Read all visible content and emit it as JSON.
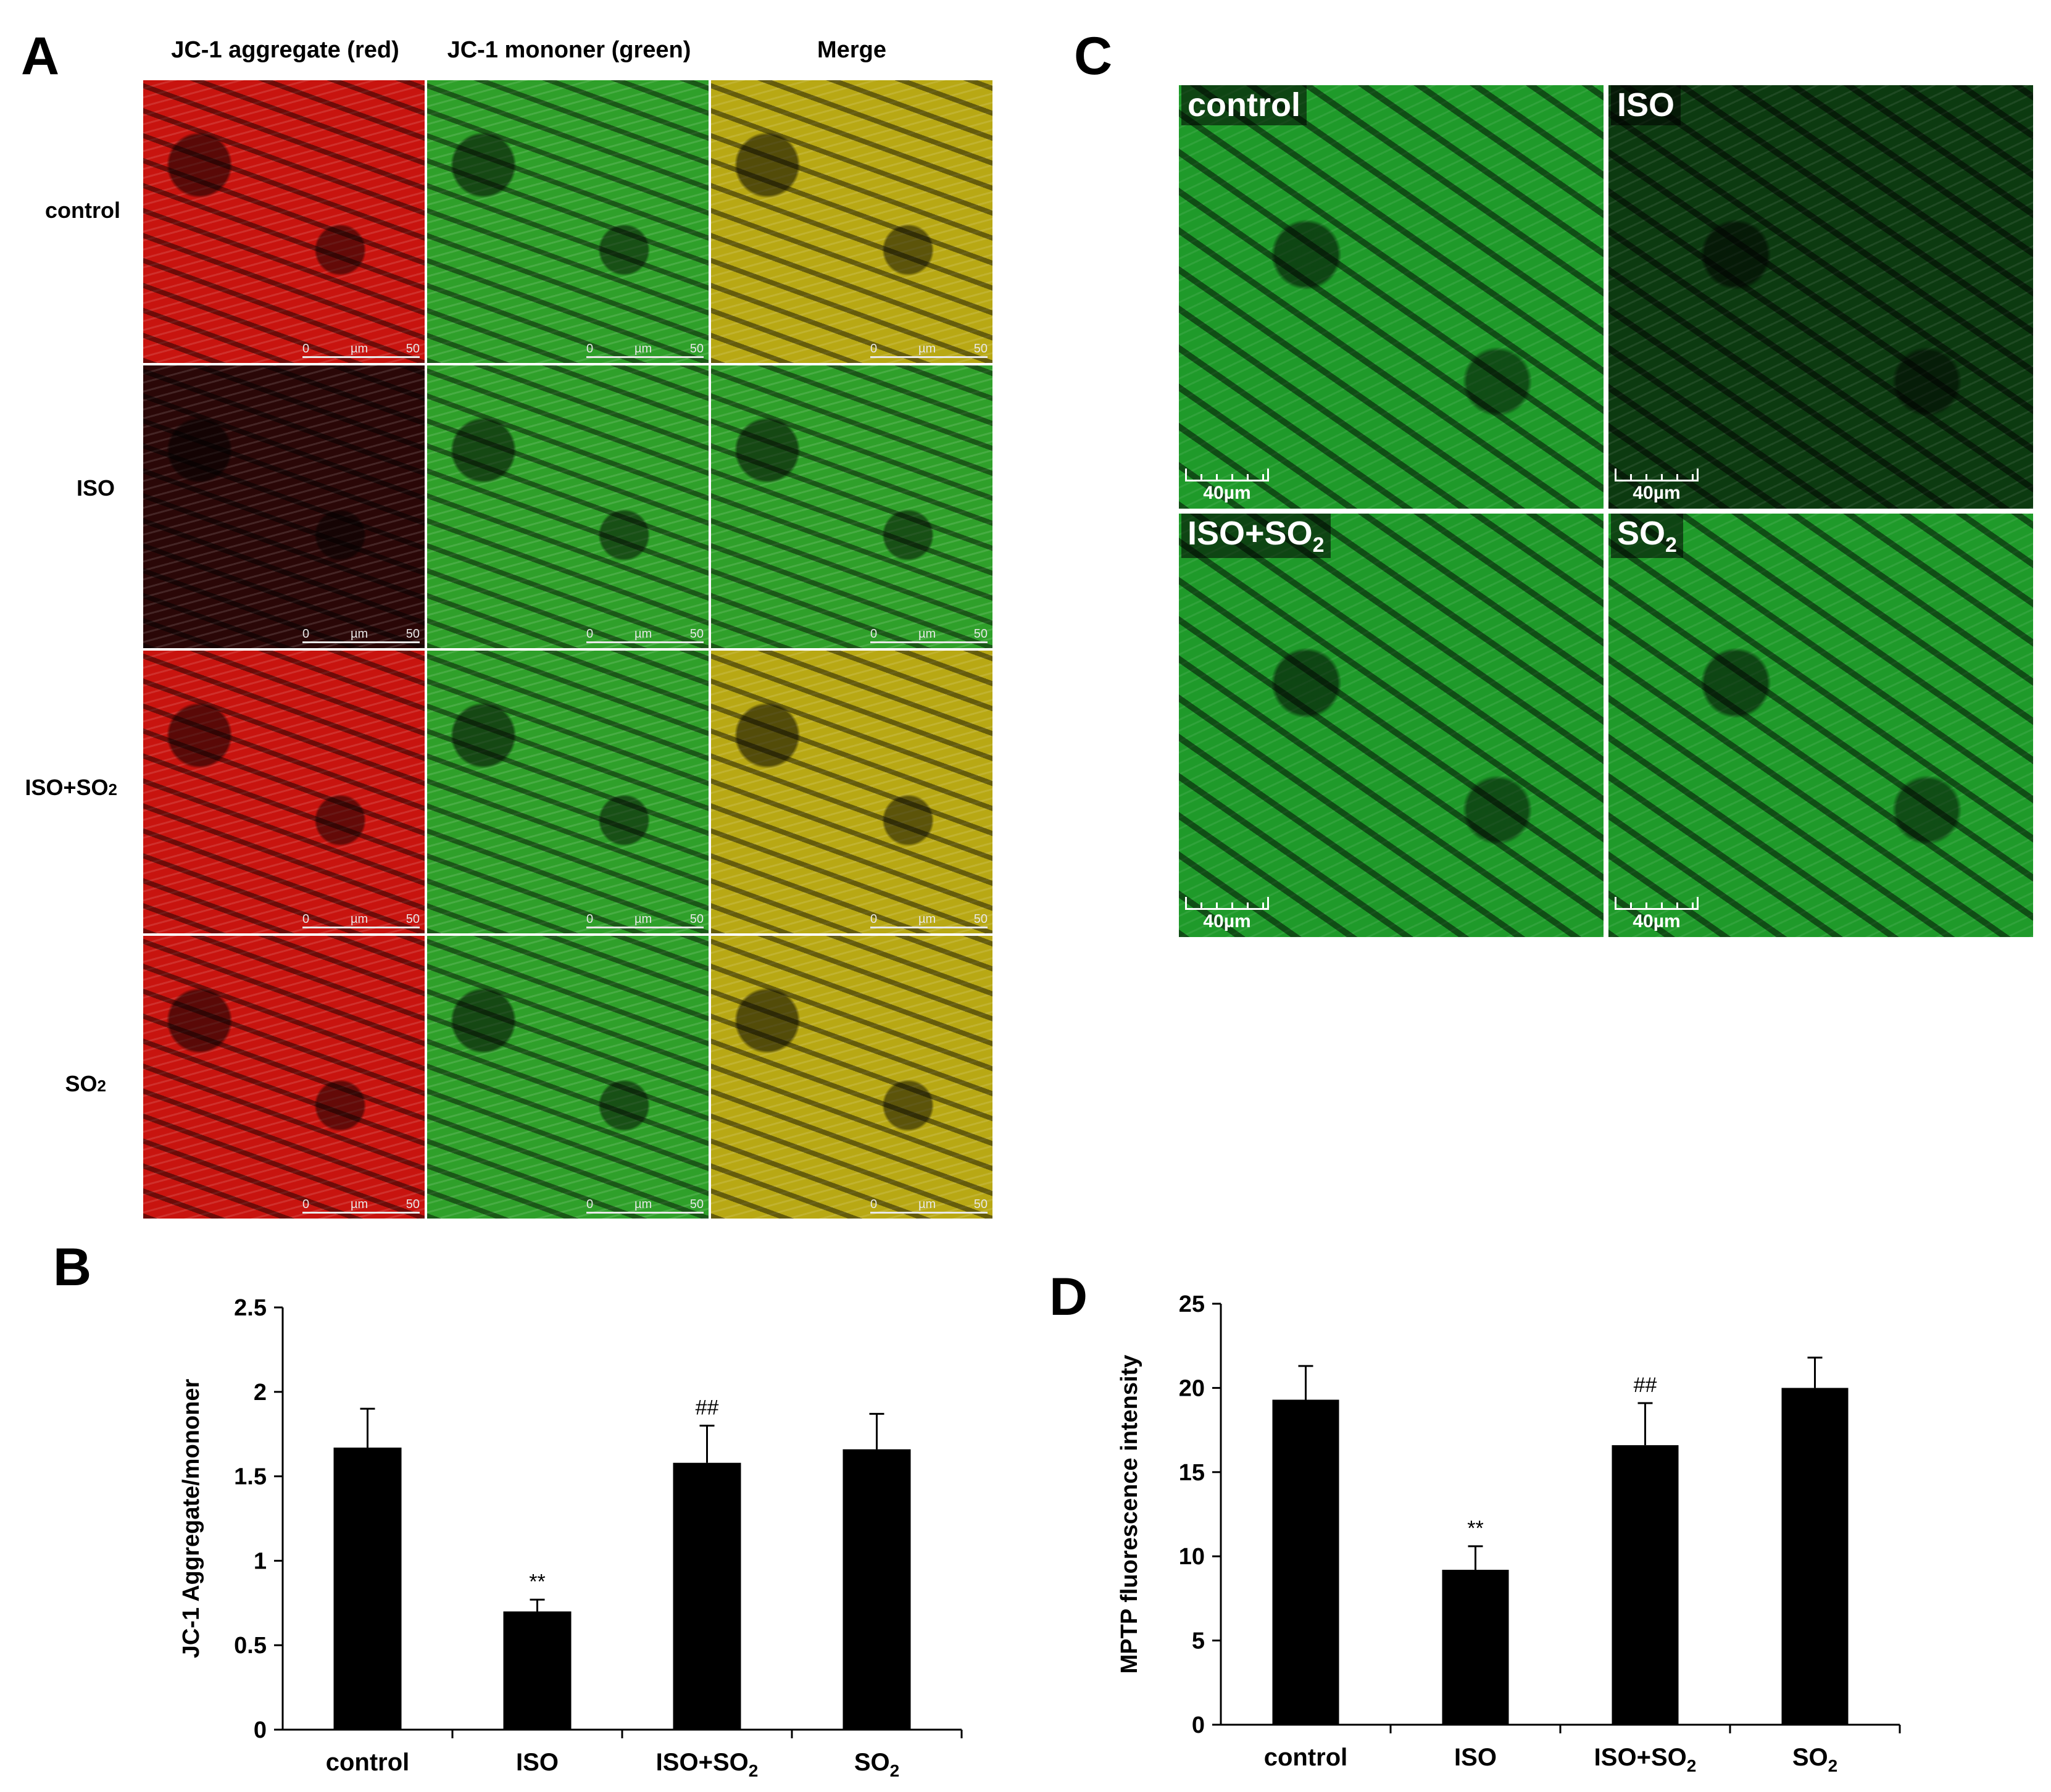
{
  "panelA": {
    "letter": "A",
    "columns": [
      "JC-1 aggregate (red)",
      "JC-1 mononer (green)",
      "Merge"
    ],
    "rows": [
      "control",
      "ISO",
      "ISO+SO2",
      "SO2"
    ],
    "scale_text": {
      "start": "0",
      "unit": "µm",
      "end": "50"
    },
    "colors": {
      "red": "#c8140f",
      "green": "#2fa02a",
      "merge": "#b8a814",
      "dim_red": "#2a0707"
    }
  },
  "panelC": {
    "letter": "C",
    "tiles": [
      {
        "label": "control",
        "sub": ""
      },
      {
        "label": "ISO",
        "sub": ""
      },
      {
        "label": "ISO+SO",
        "sub": "2"
      },
      {
        "label": "SO",
        "sub": "2"
      }
    ],
    "scale_label": "40µm",
    "colors": {
      "bright": "#1f9a2a",
      "dim": "#0c3a10"
    }
  },
  "chart_data": [
    {
      "panel": "B",
      "type": "bar",
      "categories": [
        "control",
        "ISO",
        "ISO+SO2",
        "SO2"
      ],
      "values": [
        1.67,
        0.7,
        1.58,
        1.66
      ],
      "errors": [
        0.23,
        0.07,
        0.22,
        0.21
      ],
      "annotations": [
        "",
        "**",
        "##",
        ""
      ],
      "ylabel": "JC-1 Aggregate/mononer",
      "ylim": [
        0,
        2.5
      ],
      "yticks": [
        "0",
        "0.5",
        "1",
        "1.5",
        "2",
        "2.5"
      ],
      "bar_color": "#000000"
    },
    {
      "panel": "D",
      "type": "bar",
      "categories": [
        "control",
        "ISO",
        "ISO+SO2",
        "SO2"
      ],
      "values": [
        19.3,
        9.2,
        16.6,
        20.0
      ],
      "errors": [
        2.0,
        1.4,
        2.5,
        1.8
      ],
      "annotations": [
        "",
        "**",
        "##",
        ""
      ],
      "ylabel": "MPTP fluorescence intensity",
      "ylim": [
        0,
        25
      ],
      "yticks": [
        "0",
        "5",
        "10",
        "15",
        "20",
        "25"
      ],
      "bar_color": "#000000"
    }
  ],
  "panelB_letter": "B",
  "panelD_letter": "D"
}
